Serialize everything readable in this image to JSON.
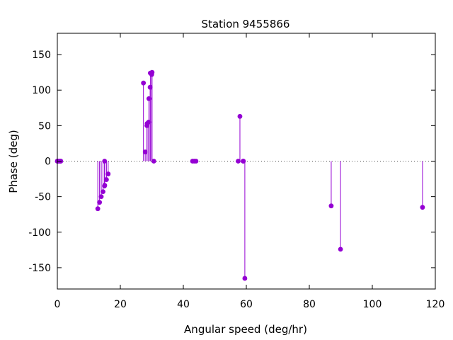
{
  "chart_data": {
    "type": "stem",
    "title": "Station 9455866",
    "xlabel": "Angular speed (deg/hr)",
    "ylabel": "Phase (deg)",
    "xlim": [
      0,
      120
    ],
    "ylim": [
      -180,
      180
    ],
    "xticks": [
      0,
      20,
      40,
      60,
      80,
      100,
      120
    ],
    "yticks": [
      -150,
      -100,
      -50,
      0,
      50,
      100,
      150
    ],
    "grid": false,
    "zero_line": "dotted",
    "color": "#9400d3",
    "points": [
      {
        "x": 0.0,
        "y": 0
      },
      {
        "x": 0.04,
        "y": 0
      },
      {
        "x": 0.08,
        "y": 0
      },
      {
        "x": 0.5,
        "y": 0
      },
      {
        "x": 0.55,
        "y": 0
      },
      {
        "x": 1.02,
        "y": 0
      },
      {
        "x": 1.1,
        "y": 0
      },
      {
        "x": 12.85,
        "y": -67
      },
      {
        "x": 13.4,
        "y": -58
      },
      {
        "x": 13.94,
        "y": -50
      },
      {
        "x": 14.5,
        "y": -43
      },
      {
        "x": 14.96,
        "y": -35
      },
      {
        "x": 15.0,
        "y": 0
      },
      {
        "x": 15.04,
        "y": -34
      },
      {
        "x": 15.59,
        "y": -26
      },
      {
        "x": 16.14,
        "y": -18
      },
      {
        "x": 27.34,
        "y": 110
      },
      {
        "x": 27.9,
        "y": 13
      },
      {
        "x": 28.44,
        "y": 50
      },
      {
        "x": 28.51,
        "y": 53
      },
      {
        "x": 28.98,
        "y": 55
      },
      {
        "x": 29.07,
        "y": 88
      },
      {
        "x": 29.46,
        "y": 104
      },
      {
        "x": 29.53,
        "y": 124
      },
      {
        "x": 29.96,
        "y": 122
      },
      {
        "x": 30.08,
        "y": 125
      },
      {
        "x": 30.63,
        "y": 0
      },
      {
        "x": 42.93,
        "y": 0
      },
      {
        "x": 43.48,
        "y": 0
      },
      {
        "x": 44.03,
        "y": 0
      },
      {
        "x": 57.42,
        "y": 0
      },
      {
        "x": 57.97,
        "y": 63
      },
      {
        "x": 58.98,
        "y": 0
      },
      {
        "x": 59.07,
        "y": 0
      },
      {
        "x": 59.53,
        "y": -165
      },
      {
        "x": 86.95,
        "y": -63
      },
      {
        "x": 89.91,
        "y": -124
      },
      {
        "x": 115.94,
        "y": -65
      }
    ]
  }
}
